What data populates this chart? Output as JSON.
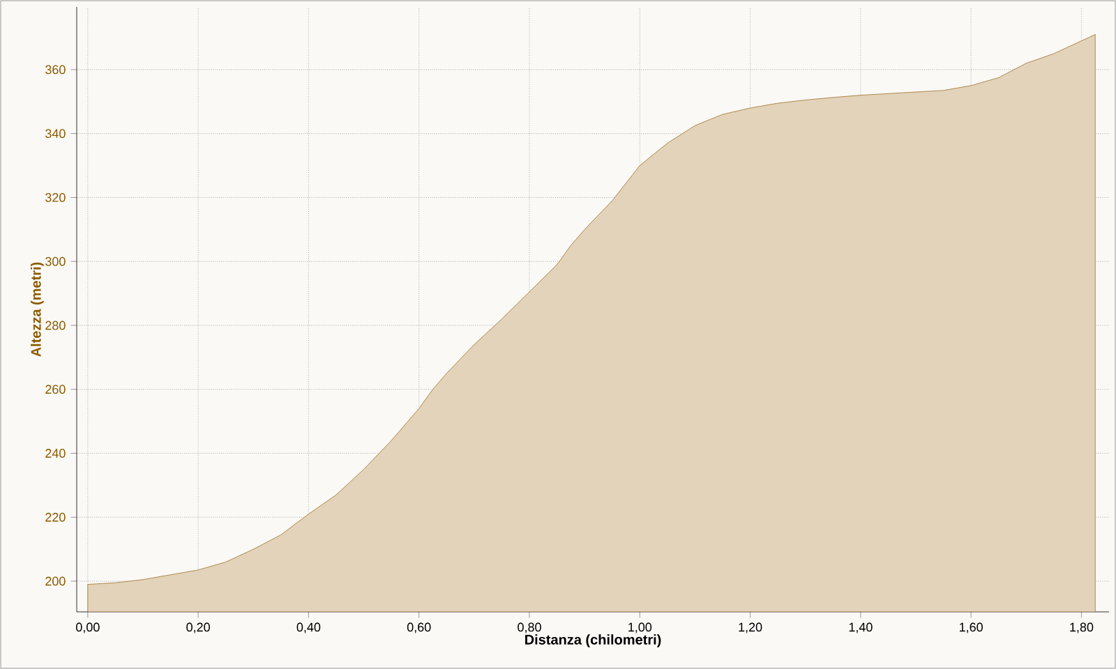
{
  "chart_data": {
    "type": "area",
    "xlabel": "Distanza (chilometri)",
    "ylabel": "Altezza (metri)",
    "x": [
      0,
      0.05,
      0.1,
      0.15,
      0.2,
      0.25,
      0.3,
      0.35,
      0.4,
      0.45,
      0.5,
      0.55,
      0.6,
      0.625,
      0.65,
      0.7,
      0.75,
      0.8,
      0.85,
      0.875,
      0.9,
      0.95,
      1.0,
      1.05,
      1.1,
      1.15,
      1.2,
      1.25,
      1.3,
      1.35,
      1.4,
      1.45,
      1.5,
      1.55,
      1.6,
      1.65,
      1.7,
      1.75,
      1.8,
      1.825
    ],
    "values": [
      199,
      199.5,
      200.5,
      202,
      203.5,
      206,
      210,
      214.5,
      221,
      227,
      235,
      244,
      254,
      260,
      265,
      274,
      282,
      290.5,
      299,
      305,
      310,
      319,
      330,
      337,
      342.5,
      346,
      348,
      349.5,
      350.5,
      351.3,
      352,
      352.5,
      353,
      353.5,
      355,
      357.5,
      362,
      365,
      369,
      371
    ],
    "color": "#a0702c",
    "xlim": [
      -0.02,
      1.85
    ],
    "ylim": [
      190.4,
      379.6
    ],
    "xticks": [
      {
        "value": 0,
        "label": "0,00"
      },
      {
        "value": 0.2,
        "label": "0,20"
      },
      {
        "value": 0.4,
        "label": "0,40"
      },
      {
        "value": 0.6,
        "label": "0,60"
      },
      {
        "value": 0.8,
        "label": "0,80"
      },
      {
        "value": 1.0,
        "label": "1,00"
      },
      {
        "value": 1.2,
        "label": "1,20"
      },
      {
        "value": 1.4,
        "label": "1,40"
      },
      {
        "value": 1.6,
        "label": "1,60"
      },
      {
        "value": 1.8,
        "label": "1,80"
      }
    ],
    "yticks": [
      200,
      220,
      240,
      260,
      280,
      300,
      320,
      340,
      360
    ],
    "grid": true
  }
}
